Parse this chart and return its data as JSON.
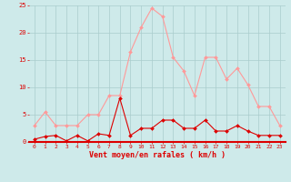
{
  "hours": [
    0,
    1,
    2,
    3,
    4,
    5,
    6,
    7,
    8,
    9,
    10,
    11,
    12,
    13,
    14,
    15,
    16,
    17,
    18,
    19,
    20,
    21,
    22,
    23
  ],
  "vent_moyen": [
    0.5,
    1.0,
    1.2,
    0.2,
    1.2,
    0.2,
    1.5,
    1.2,
    8.0,
    1.2,
    2.5,
    2.5,
    4.0,
    4.0,
    2.5,
    2.5,
    4.0,
    2.0,
    2.0,
    3.0,
    2.0,
    1.2,
    1.2,
    1.2
  ],
  "rafales": [
    3.0,
    5.5,
    3.0,
    3.0,
    3.0,
    5.0,
    5.0,
    8.5,
    8.5,
    16.5,
    21.0,
    24.5,
    23.0,
    15.5,
    13.0,
    8.5,
    15.5,
    15.5,
    11.5,
    13.5,
    10.5,
    6.5,
    6.5,
    3.0
  ],
  "ylim": [
    0,
    25
  ],
  "yticks": [
    0,
    5,
    10,
    15,
    20,
    25
  ],
  "xlabel": "Vent moyen/en rafales ( km/h )",
  "bg_color": "#ceeaea",
  "grid_color": "#aacccc",
  "line_color_moyen": "#dd0000",
  "line_color_rafales": "#ff9999",
  "marker_size": 2.0,
  "axis_color": "#dd0000",
  "tick_color": "#dd0000",
  "xlabel_color": "#dd0000"
}
